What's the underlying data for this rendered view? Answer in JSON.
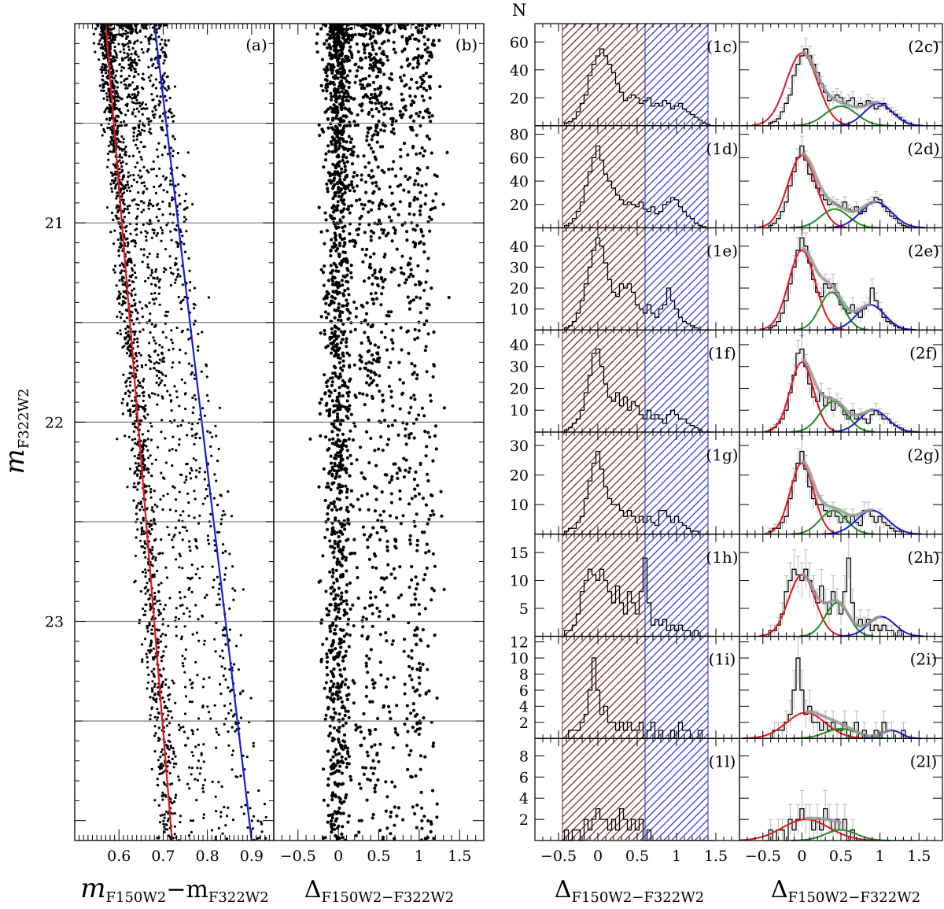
{
  "chart_data": {
    "type": "scatter",
    "title": "",
    "axis_labels": {
      "ylabel_main": "m",
      "ylabel_sub": "F322W2",
      "xlabel_a_left": "m",
      "xlabel_a_left_sub": "F150W2",
      "xlabel_a_dash": "−m",
      "xlabel_a_right_sub": "F322W2",
      "delta": "Δ",
      "delta_sub": "F150W2−F322W2",
      "n_label": "N"
    },
    "panel_a": {
      "tag": "(a)",
      "xlim": [
        0.5,
        0.95
      ],
      "ylim": [
        24.1,
        20.0
      ],
      "x_ticks": [
        "0.6",
        "0.7",
        "0.8",
        "0.9"
      ],
      "x_tick_values": [
        0.6,
        0.7,
        0.8,
        0.9
      ],
      "y_ticks": [
        "21",
        "22",
        "23"
      ],
      "y_tick_values": [
        21,
        22,
        23
      ],
      "red_fiducial": {
        "mag": [
          20.0,
          24.1
        ],
        "color": [
          0.57,
          0.72
        ]
      },
      "blue_fiducial": {
        "mag": [
          20.0,
          24.1
        ],
        "color": [
          0.68,
          0.9
        ]
      },
      "mag_bin_edges": [
        20.5,
        21.0,
        21.5,
        22.0,
        22.5,
        23.0,
        23.5
      ]
    },
    "panel_b": {
      "tag": "(b)",
      "xlim": [
        -0.8,
        1.8
      ],
      "x_ticks": [
        "−0.5",
        "0",
        "0.5",
        "1",
        "1.5"
      ],
      "x_tick_values": [
        -0.5,
        0,
        0.5,
        1,
        1.5
      ]
    },
    "histograms": {
      "xlim": [
        -0.8,
        1.8
      ],
      "x_ticks": [
        "−0.5",
        "0",
        "0.5",
        "1",
        "1.5"
      ],
      "x_tick_values": [
        -0.5,
        0,
        0.5,
        1,
        1.5
      ],
      "red_band": [
        -0.45,
        0.6
      ],
      "blue_band": [
        0.6,
        1.4
      ],
      "bin_centers": [
        -0.45,
        -0.4,
        -0.35,
        -0.3,
        -0.25,
        -0.2,
        -0.15,
        -0.1,
        -0.05,
        0.0,
        0.05,
        0.1,
        0.15,
        0.2,
        0.25,
        0.3,
        0.35,
        0.4,
        0.45,
        0.5,
        0.55,
        0.6,
        0.65,
        0.7,
        0.75,
        0.8,
        0.85,
        0.9,
        0.95,
        1.0,
        1.05,
        1.1,
        1.15,
        1.2,
        1.25,
        1.3,
        1.35,
        1.4,
        1.45
      ],
      "rows": [
        {
          "tag1": "(1c)",
          "tag2": "(2c)",
          "yticks": [
            "20",
            "40",
            "60"
          ],
          "ytick_values": [
            20,
            40,
            60
          ],
          "ymax": 72,
          "counts": [
            0,
            2,
            3,
            5,
            10,
            16,
            22,
            36,
            44,
            50,
            55,
            50,
            44,
            38,
            30,
            24,
            18,
            20,
            22,
            20,
            16,
            18,
            20,
            14,
            16,
            14,
            18,
            16,
            12,
            14,
            16,
            12,
            10,
            8,
            6,
            4,
            2,
            1,
            0
          ],
          "fits": [
            {
              "color": "red",
              "amp": 52,
              "mu": 0.0,
              "sigma": 0.2
            },
            {
              "color": "green",
              "amp": 14,
              "mu": 0.5,
              "sigma": 0.2
            },
            {
              "color": "blue",
              "amp": 16,
              "mu": 0.98,
              "sigma": 0.18
            }
          ]
        },
        {
          "tag1": "(1d)",
          "tag2": "(2d)",
          "yticks": [
            "20",
            "40",
            "60",
            "80"
          ],
          "ytick_values": [
            20,
            40,
            60,
            80
          ],
          "ymax": 86,
          "counts": [
            0,
            2,
            4,
            8,
            14,
            22,
            36,
            48,
            60,
            70,
            58,
            46,
            40,
            34,
            28,
            24,
            20,
            22,
            20,
            18,
            22,
            16,
            14,
            18,
            12,
            14,
            20,
            22,
            26,
            24,
            18,
            14,
            10,
            8,
            4,
            2,
            1,
            0,
            0
          ],
          "fits": [
            {
              "color": "red",
              "amp": 62,
              "mu": 0.0,
              "sigma": 0.18
            },
            {
              "color": "green",
              "amp": 16,
              "mu": 0.42,
              "sigma": 0.18
            },
            {
              "color": "blue",
              "amp": 22,
              "mu": 0.95,
              "sigma": 0.2
            }
          ]
        },
        {
          "tag1": "(1e)",
          "tag2": "(2e)",
          "yticks": [
            "10",
            "20",
            "30",
            "40"
          ],
          "ytick_values": [
            10,
            20,
            30,
            40
          ],
          "ymax": 48,
          "counts": [
            0,
            1,
            2,
            4,
            8,
            14,
            22,
            30,
            38,
            44,
            40,
            32,
            24,
            18,
            16,
            22,
            20,
            22,
            18,
            12,
            10,
            8,
            12,
            8,
            6,
            10,
            12,
            20,
            14,
            10,
            6,
            4,
            3,
            2,
            1,
            0,
            0,
            0,
            0
          ],
          "fits": [
            {
              "color": "red",
              "amp": 38,
              "mu": 0.0,
              "sigma": 0.17
            },
            {
              "color": "green",
              "amp": 18,
              "mu": 0.38,
              "sigma": 0.15
            },
            {
              "color": "blue",
              "amp": 12,
              "mu": 0.88,
              "sigma": 0.18
            }
          ]
        },
        {
          "tag1": "(1f)",
          "tag2": "(2f)",
          "yticks": [
            "10",
            "20",
            "30",
            "40"
          ],
          "ytick_values": [
            10,
            20,
            30,
            40
          ],
          "ymax": 46,
          "counts": [
            0,
            1,
            2,
            4,
            6,
            10,
            18,
            26,
            36,
            38,
            30,
            22,
            16,
            14,
            18,
            12,
            16,
            10,
            14,
            12,
            8,
            6,
            10,
            6,
            8,
            6,
            4,
            8,
            10,
            8,
            6,
            6,
            4,
            3,
            2,
            1,
            0,
            0,
            0
          ],
          "fits": [
            {
              "color": "red",
              "amp": 32,
              "mu": 0.0,
              "sigma": 0.15
            },
            {
              "color": "green",
              "amp": 14,
              "mu": 0.4,
              "sigma": 0.17
            },
            {
              "color": "blue",
              "amp": 10,
              "mu": 0.92,
              "sigma": 0.18
            }
          ]
        },
        {
          "tag1": "(1g)",
          "tag2": "(2g)",
          "yticks": [
            "10",
            "20",
            "30"
          ],
          "ytick_values": [
            10,
            20,
            30
          ],
          "ymax": 34,
          "counts": [
            0,
            1,
            2,
            2,
            4,
            6,
            12,
            18,
            24,
            28,
            22,
            16,
            12,
            10,
            10,
            8,
            6,
            8,
            6,
            4,
            6,
            4,
            6,
            4,
            3,
            8,
            8,
            6,
            4,
            6,
            4,
            3,
            2,
            1,
            1,
            0,
            0,
            0,
            0
          ],
          "fits": [
            {
              "color": "red",
              "amp": 24,
              "mu": 0.0,
              "sigma": 0.15
            },
            {
              "color": "green",
              "amp": 8,
              "mu": 0.4,
              "sigma": 0.17
            },
            {
              "color": "blue",
              "amp": 8,
              "mu": 0.9,
              "sigma": 0.2
            }
          ]
        },
        {
          "tag1": "(1h)",
          "tag2": "(2h)",
          "yticks": [
            "5",
            "10",
            "15"
          ],
          "ytick_values": [
            5,
            10,
            15
          ],
          "ymax": 18,
          "counts": [
            0,
            1,
            1,
            2,
            4,
            8,
            10,
            12,
            11,
            10,
            12,
            10,
            8,
            6,
            9,
            6,
            4,
            8,
            6,
            4,
            8,
            14,
            6,
            2,
            3,
            2,
            3,
            1,
            2,
            1,
            2,
            1,
            1,
            0,
            1,
            0,
            0,
            0,
            0
          ],
          "fits": [
            {
              "color": "red",
              "amp": 11,
              "mu": 0.0,
              "sigma": 0.17
            },
            {
              "color": "green",
              "amp": 6,
              "mu": 0.45,
              "sigma": 0.15
            },
            {
              "color": "blue",
              "amp": 3.5,
              "mu": 1.02,
              "sigma": 0.17
            }
          ]
        },
        {
          "tag1": "(1i)",
          "tag2": "(2i)",
          "yticks": [
            "2",
            "4",
            "6",
            "8",
            "10",
            "12"
          ],
          "ytick_values": [
            2,
            4,
            6,
            8,
            10,
            12
          ],
          "ymax": 12.5,
          "counts": [
            0,
            0,
            1,
            1,
            1,
            2,
            3,
            6,
            10,
            6,
            3,
            4,
            2,
            2,
            1,
            2,
            1,
            2,
            1,
            1,
            2,
            0,
            1,
            2,
            0,
            1,
            0,
            0,
            1,
            0,
            2,
            1,
            1,
            0,
            0,
            1,
            0,
            0,
            0
          ],
          "fits": [
            {
              "color": "red",
              "amp": 3.2,
              "mu": 0.05,
              "sigma": 0.25
            },
            {
              "color": "green",
              "amp": 1.2,
              "mu": 0.5,
              "sigma": 0.2
            },
            {
              "color": "blue",
              "amp": 1.0,
              "mu": 1.15,
              "sigma": 0.12
            }
          ]
        },
        {
          "tag1": "(1l)",
          "tag2": "(2l)",
          "yticks": [
            "2",
            "4",
            "6",
            "8"
          ],
          "ytick_values": [
            2,
            4,
            6,
            8
          ],
          "ymax": 9.5,
          "counts": [
            0,
            1,
            0,
            1,
            1,
            0,
            2,
            1,
            2,
            3,
            2,
            2,
            1,
            2,
            1,
            3,
            2,
            1,
            2,
            1,
            2,
            0,
            1,
            0,
            0,
            0,
            0,
            0,
            0,
            0,
            0,
            0,
            0,
            0,
            0,
            0,
            0,
            0,
            0
          ],
          "fits": [
            {
              "color": "red",
              "amp": 2.0,
              "mu": 0.05,
              "sigma": 0.3
            },
            {
              "color": "green",
              "amp": 1.0,
              "mu": 0.5,
              "sigma": 0.2
            }
          ]
        }
      ]
    },
    "colors": {
      "red": "#e8141c",
      "blue": "#1b1bd6",
      "green": "#1f8c1f",
      "gray": "#999999",
      "redband": "#7a1a1a",
      "blueband": "#2b2bd9"
    }
  }
}
